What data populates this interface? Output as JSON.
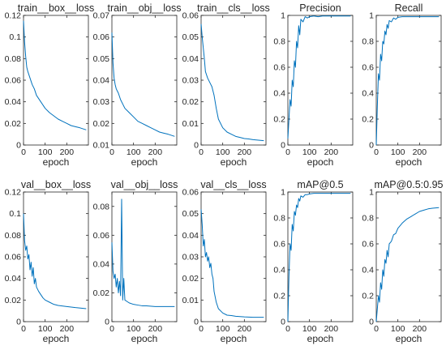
{
  "chart_data": [
    {
      "type": "line",
      "title": "train__box__loss",
      "xlabel": "epoch",
      "xlim": [
        0,
        300
      ],
      "ylim": [
        0,
        0.12
      ],
      "xticks": [
        "0",
        "100",
        "200"
      ],
      "yticks": [
        "0",
        "0.02",
        "0.04",
        "0.06",
        "0.08",
        "0.1",
        "0.12"
      ],
      "series": [
        {
          "color": "#0072BD",
          "x": [
            0,
            5,
            10,
            15,
            20,
            30,
            40,
            50,
            60,
            80,
            100,
            120,
            140,
            160,
            180,
            200,
            220,
            240,
            260,
            290
          ],
          "y": [
            0.115,
            0.095,
            0.082,
            0.072,
            0.068,
            0.062,
            0.056,
            0.052,
            0.046,
            0.04,
            0.034,
            0.03,
            0.027,
            0.024,
            0.022,
            0.02,
            0.018,
            0.017,
            0.016,
            0.014
          ]
        }
      ]
    },
    {
      "type": "line",
      "title": "train__obj__loss",
      "xlabel": "epoch",
      "xlim": [
        0,
        300
      ],
      "ylim": [
        0.01,
        0.07
      ],
      "xticks": [
        "0",
        "100",
        "200"
      ],
      "yticks": [
        "0.01",
        "0.02",
        "0.03",
        "0.04",
        "0.05",
        "0.06",
        "0.07"
      ],
      "series": [
        {
          "color": "#0072BD",
          "x": [
            0,
            5,
            10,
            15,
            20,
            30,
            40,
            50,
            60,
            80,
            100,
            120,
            140,
            160,
            180,
            200,
            220,
            240,
            260,
            290
          ],
          "y": [
            0.062,
            0.048,
            0.041,
            0.038,
            0.036,
            0.034,
            0.031,
            0.029,
            0.027,
            0.025,
            0.023,
            0.021,
            0.02,
            0.019,
            0.018,
            0.017,
            0.016,
            0.0155,
            0.015,
            0.014
          ]
        }
      ]
    },
    {
      "type": "line",
      "title": "train__cls__loss",
      "xlabel": "epoch",
      "xlim": [
        0,
        300
      ],
      "ylim": [
        0,
        0.06
      ],
      "xticks": [
        "0",
        "100",
        "200"
      ],
      "yticks": [
        "0",
        "0.01",
        "0.02",
        "0.03",
        "0.04",
        "0.05",
        "0.06"
      ],
      "series": [
        {
          "color": "#0072BD",
          "x": [
            0,
            5,
            10,
            15,
            20,
            30,
            40,
            50,
            60,
            70,
            80,
            100,
            120,
            140,
            160,
            180,
            200,
            220,
            240,
            260,
            290
          ],
          "y": [
            0.056,
            0.05,
            0.045,
            0.04,
            0.034,
            0.031,
            0.029,
            0.027,
            0.023,
            0.017,
            0.012,
            0.008,
            0.006,
            0.005,
            0.004,
            0.0035,
            0.003,
            0.0028,
            0.0025,
            0.0023,
            0.002
          ]
        }
      ]
    },
    {
      "type": "line",
      "title": "Precision",
      "xlabel": "epoch",
      "xlim": [
        0,
        300
      ],
      "ylim": [
        0,
        1
      ],
      "xticks": [
        "0",
        "100",
        "200"
      ],
      "yticks": [
        "0",
        "0.2",
        "0.4",
        "0.6",
        "0.8",
        "1"
      ],
      "series": [
        {
          "color": "#0072BD",
          "x": [
            0,
            5,
            10,
            15,
            20,
            25,
            30,
            35,
            40,
            45,
            50,
            55,
            60,
            70,
            80,
            90,
            100,
            120,
            140,
            160,
            200,
            240,
            290
          ],
          "y": [
            0.05,
            0.2,
            0.35,
            0.3,
            0.5,
            0.45,
            0.65,
            0.6,
            0.8,
            0.75,
            0.92,
            0.85,
            0.97,
            0.95,
            0.99,
            0.98,
            0.99,
            0.995,
            0.99,
            0.995,
            0.995,
            0.995,
            0.995
          ]
        }
      ]
    },
    {
      "type": "line",
      "title": "Recall",
      "xlabel": "epoch",
      "xlim": [
        0,
        300
      ],
      "ylim": [
        0,
        1
      ],
      "xticks": [
        "0",
        "100",
        "200"
      ],
      "yticks": [
        "0",
        "0.2",
        "0.4",
        "0.6",
        "0.8",
        "1"
      ],
      "series": [
        {
          "color": "#0072BD",
          "x": [
            0,
            5,
            10,
            15,
            20,
            25,
            30,
            35,
            40,
            45,
            50,
            55,
            60,
            70,
            80,
            90,
            100,
            120,
            140,
            160,
            200,
            240,
            290
          ],
          "y": [
            0.0,
            0.3,
            0.55,
            0.5,
            0.7,
            0.65,
            0.8,
            0.78,
            0.88,
            0.85,
            0.93,
            0.9,
            0.96,
            0.95,
            0.98,
            0.97,
            0.985,
            0.99,
            0.99,
            0.99,
            0.99,
            0.99,
            0.99
          ]
        }
      ]
    },
    {
      "type": "line",
      "title": "val__box__loss",
      "xlabel": "epoch",
      "xlim": [
        0,
        300
      ],
      "ylim": [
        0,
        0.12
      ],
      "xticks": [
        "0",
        "100",
        "200"
      ],
      "yticks": [
        "0",
        "0.02",
        "0.04",
        "0.06",
        "0.08",
        "0.1",
        "0.12"
      ],
      "series": [
        {
          "color": "#0072BD",
          "x": [
            0,
            5,
            10,
            15,
            20,
            25,
            30,
            35,
            40,
            45,
            50,
            55,
            60,
            70,
            80,
            90,
            100,
            120,
            140,
            160,
            200,
            240,
            290
          ],
          "y": [
            0.1,
            0.075,
            0.066,
            0.07,
            0.058,
            0.062,
            0.048,
            0.055,
            0.042,
            0.05,
            0.035,
            0.04,
            0.032,
            0.028,
            0.025,
            0.022,
            0.02,
            0.018,
            0.016,
            0.015,
            0.014,
            0.013,
            0.012
          ]
        }
      ]
    },
    {
      "type": "line",
      "title": "val__obj__loss",
      "xlabel": "epoch",
      "xlim": [
        0,
        300
      ],
      "ylim": [
        0,
        0.09
      ],
      "xticks": [
        "0",
        "100",
        "200"
      ],
      "yticks": [
        "0",
        "0.02",
        "0.04",
        "0.06",
        "0.08"
      ],
      "series": [
        {
          "color": "#0072BD",
          "x": [
            0,
            5,
            10,
            15,
            20,
            25,
            30,
            35,
            40,
            45,
            50,
            55,
            60,
            70,
            80,
            100,
            120,
            140,
            160,
            200,
            240,
            290
          ],
          "y": [
            0.055,
            0.035,
            0.03,
            0.033,
            0.024,
            0.03,
            0.02,
            0.028,
            0.018,
            0.085,
            0.015,
            0.03,
            0.015,
            0.014,
            0.013,
            0.012,
            0.0115,
            0.011,
            0.011,
            0.0105,
            0.0105,
            0.0105
          ]
        }
      ]
    },
    {
      "type": "line",
      "title": "val__cls__loss",
      "xlabel": "epoch",
      "xlim": [
        0,
        300
      ],
      "ylim": [
        0,
        0.06
      ],
      "xticks": [
        "0",
        "100",
        "200"
      ],
      "yticks": [
        "0",
        "0.01",
        "0.02",
        "0.03",
        "0.04",
        "0.05",
        "0.06"
      ],
      "series": [
        {
          "color": "#0072BD",
          "x": [
            0,
            5,
            10,
            15,
            20,
            25,
            30,
            35,
            40,
            45,
            50,
            55,
            60,
            70,
            80,
            100,
            120,
            140,
            160,
            200,
            240,
            290
          ],
          "y": [
            0.052,
            0.045,
            0.035,
            0.038,
            0.03,
            0.032,
            0.028,
            0.03,
            0.025,
            0.027,
            0.022,
            0.02,
            0.014,
            0.009,
            0.006,
            0.004,
            0.003,
            0.0028,
            0.0025,
            0.0022,
            0.002,
            0.002
          ]
        }
      ]
    },
    {
      "type": "line",
      "title": "mAP@0.5",
      "xlabel": "epoch",
      "xlim": [
        0,
        300
      ],
      "ylim": [
        0,
        1
      ],
      "xticks": [
        "0",
        "100",
        "200"
      ],
      "yticks": [
        "0",
        "0.2",
        "0.4",
        "0.6",
        "0.8",
        "1"
      ],
      "series": [
        {
          "color": "#0072BD",
          "x": [
            0,
            5,
            10,
            15,
            20,
            25,
            30,
            35,
            40,
            45,
            50,
            55,
            60,
            70,
            80,
            90,
            100,
            120,
            140,
            160,
            200,
            240,
            290
          ],
          "y": [
            0.0,
            0.35,
            0.6,
            0.55,
            0.75,
            0.7,
            0.85,
            0.82,
            0.9,
            0.88,
            0.95,
            0.93,
            0.97,
            0.96,
            0.98,
            0.98,
            0.985,
            0.99,
            0.99,
            0.99,
            0.99,
            0.99,
            0.99
          ]
        }
      ]
    },
    {
      "type": "line",
      "title": "mAP@0.5:0.95",
      "xlabel": "epoch",
      "xlim": [
        0,
        300
      ],
      "ylim": [
        0,
        1
      ],
      "xticks": [
        "0",
        "100",
        "200"
      ],
      "yticks": [
        "0",
        "0.2",
        "0.4",
        "0.6",
        "0.8",
        "1"
      ],
      "series": [
        {
          "color": "#0072BD",
          "x": [
            0,
            5,
            10,
            15,
            20,
            25,
            30,
            35,
            40,
            45,
            50,
            55,
            60,
            70,
            80,
            90,
            100,
            120,
            140,
            160,
            180,
            200,
            220,
            240,
            260,
            290
          ],
          "y": [
            0.0,
            0.1,
            0.2,
            0.15,
            0.3,
            0.25,
            0.4,
            0.35,
            0.48,
            0.45,
            0.55,
            0.5,
            0.6,
            0.62,
            0.67,
            0.68,
            0.72,
            0.76,
            0.79,
            0.81,
            0.83,
            0.85,
            0.86,
            0.87,
            0.875,
            0.88
          ]
        }
      ]
    }
  ]
}
